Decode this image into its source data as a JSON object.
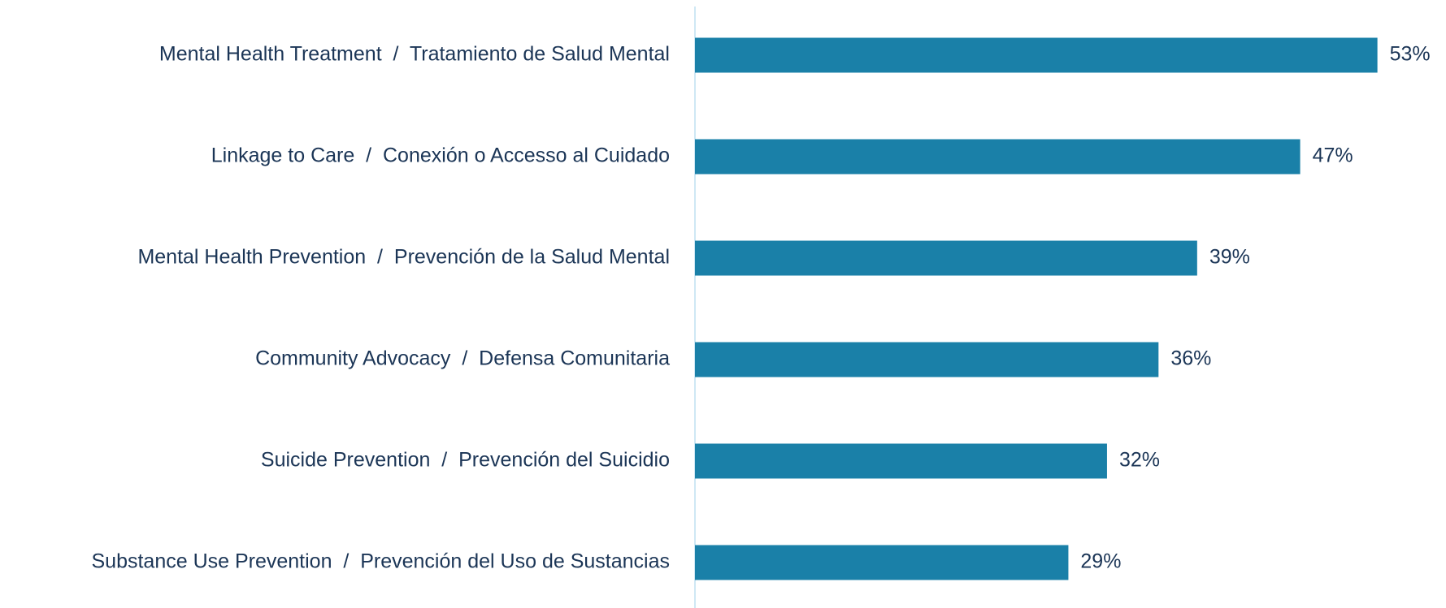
{
  "chart_data": {
    "type": "barh",
    "categories": [
      "Mental Health Treatment  /  Tratamiento de Salud Mental",
      "Linkage to Care  /  Conexión o Accesso al Cuidado",
      "Mental Health Prevention  /  Prevención de la Salud Mental",
      "Community Advocacy  /  Defensa Comunitaria",
      "Suicide Prevention  /  Prevención del Suicidio",
      "Substance Use Prevention  /  Prevención del Uso de Sustancias"
    ],
    "values": [
      53,
      47,
      39,
      36,
      32,
      29
    ],
    "value_labels": [
      "53%",
      "47%",
      "39%",
      "36%",
      "32%",
      "29%"
    ],
    "color": "#1a80a8",
    "xlim": [
      0,
      57
    ]
  }
}
